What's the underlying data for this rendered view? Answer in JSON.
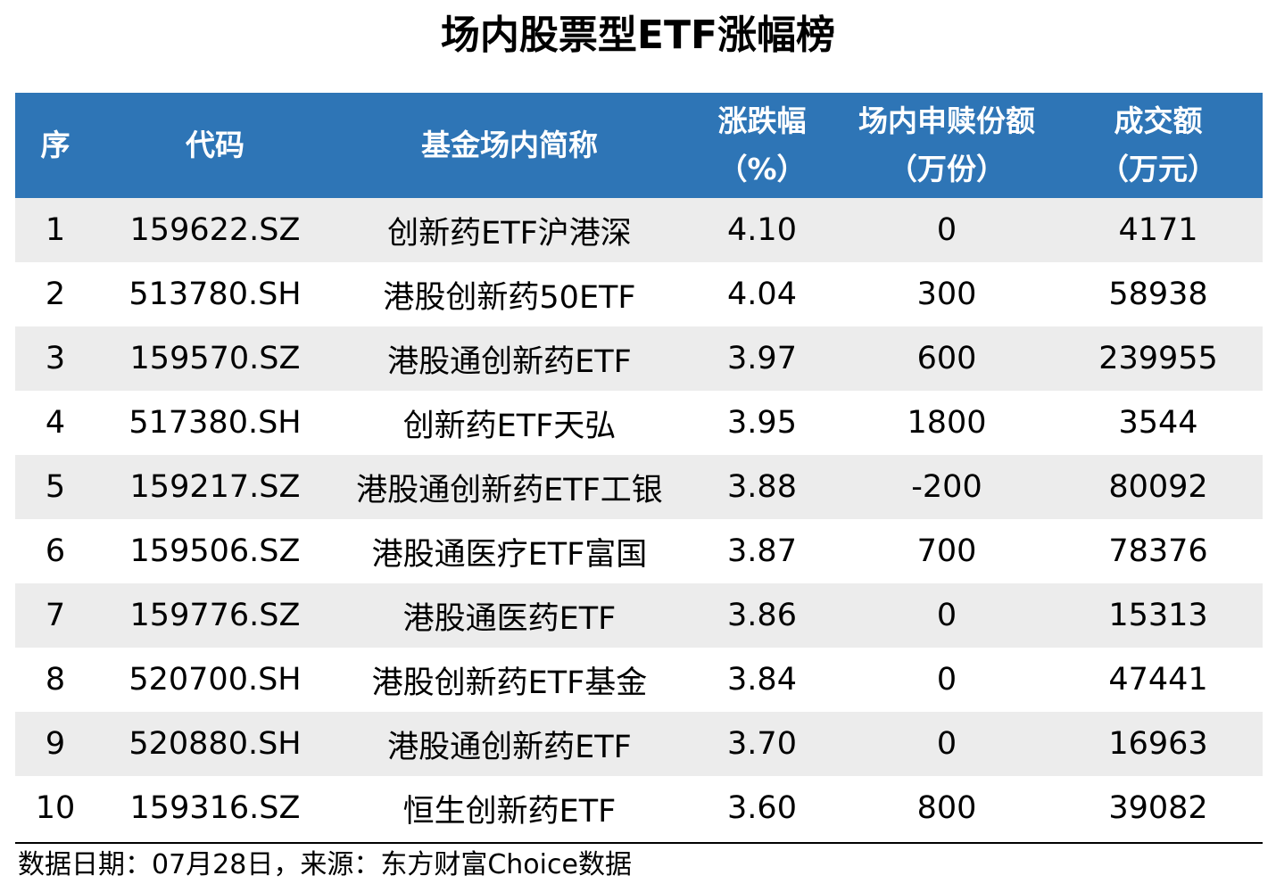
{
  "title": "场内股票型ETF涨幅榜",
  "table": {
    "headers": [
      {
        "line1": "序",
        "line2": ""
      },
      {
        "line1": "代码",
        "line2": ""
      },
      {
        "line1": "基金场内简称",
        "line2": ""
      },
      {
        "line1": "涨跌幅",
        "line2": "（%）"
      },
      {
        "line1": "场内申赎份额",
        "line2": "（万份）"
      },
      {
        "line1": "成交额",
        "line2": "（万元）"
      }
    ],
    "rows": [
      {
        "rank": "1",
        "code": "159622.SZ",
        "name": "创新药ETF沪港深",
        "change": "4.10",
        "shares": "0",
        "turnover": "4171"
      },
      {
        "rank": "2",
        "code": "513780.SH",
        "name": "港股创新药50ETF",
        "change": "4.04",
        "shares": "300",
        "turnover": "58938"
      },
      {
        "rank": "3",
        "code": "159570.SZ",
        "name": "港股通创新药ETF",
        "change": "3.97",
        "shares": "600",
        "turnover": "239955"
      },
      {
        "rank": "4",
        "code": "517380.SH",
        "name": "创新药ETF天弘",
        "change": "3.95",
        "shares": "1800",
        "turnover": "3544"
      },
      {
        "rank": "5",
        "code": "159217.SZ",
        "name": "港股通创新药ETF工银",
        "change": "3.88",
        "shares": "-200",
        "turnover": "80092"
      },
      {
        "rank": "6",
        "code": "159506.SZ",
        "name": "港股通医疗ETF富国",
        "change": "3.87",
        "shares": "700",
        "turnover": "78376"
      },
      {
        "rank": "7",
        "code": "159776.SZ",
        "name": "港股通医药ETF",
        "change": "3.86",
        "shares": "0",
        "turnover": "15313"
      },
      {
        "rank": "8",
        "code": "520700.SH",
        "name": "港股创新药ETF基金",
        "change": "3.84",
        "shares": "0",
        "turnover": "47441"
      },
      {
        "rank": "9",
        "code": "520880.SH",
        "name": "港股通创新药ETF",
        "change": "3.70",
        "shares": "0",
        "turnover": "16963"
      },
      {
        "rank": "10",
        "code": "159316.SZ",
        "name": "恒生创新药ETF",
        "change": "3.60",
        "shares": "800",
        "turnover": "39082"
      }
    ]
  },
  "footer": "数据日期：07月28日，来源：东方财富Choice数据",
  "colors": {
    "header_bg": "#2e75b6",
    "header_text": "#ffffff",
    "stripe_bg": "#ececec"
  }
}
